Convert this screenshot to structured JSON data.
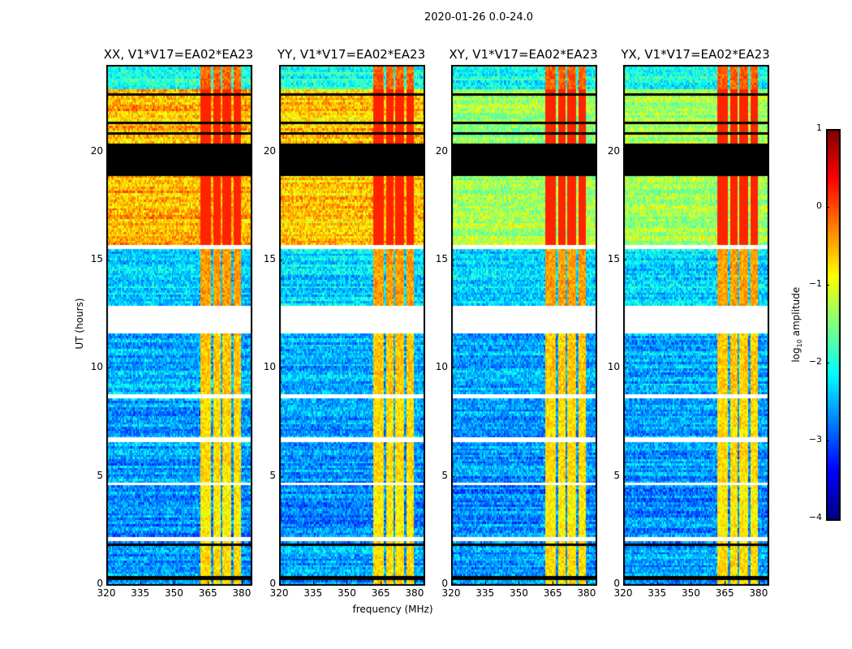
{
  "chart_data": {
    "type": "heatmap",
    "title": "2020-01-26 0.0-24.0",
    "xlabel": "frequency (MHz)",
    "ylabel": "UT (hours)",
    "xlim": [
      320,
      384
    ],
    "ylim": [
      0,
      24
    ],
    "xticks": [
      320,
      335,
      350,
      365,
      380
    ],
    "yticks": [
      0,
      5,
      10,
      15,
      20
    ],
    "colorbar": {
      "label_main": "log",
      "label_sub": "10",
      "label_rest": " amplitude",
      "colormap": "jet",
      "range": [
        -4,
        1
      ],
      "ticks": [
        1,
        0,
        -1,
        -2,
        -3,
        -4
      ]
    },
    "panels": [
      {
        "title": "XX, V1*V17=EA02*EA23",
        "high_level": -0.5
      },
      {
        "title": "YY, V1*V17=EA02*EA23",
        "high_level": -0.6
      },
      {
        "title": "XY, V1*V17=EA02*EA23",
        "high_level": -1.3
      },
      {
        "title": "YX, V1*V17=EA02*EA23",
        "high_level": -1.3
      }
    ],
    "time_segments": [
      {
        "ut": [
          0,
          2.0
        ],
        "level": -2.6
      },
      {
        "ut": [
          2.0,
          2.2
        ],
        "level": "flagged"
      },
      {
        "ut": [
          2.2,
          4.6
        ],
        "level": -2.7
      },
      {
        "ut": [
          4.6,
          4.75
        ],
        "level": "flagged"
      },
      {
        "ut": [
          4.75,
          6.6
        ],
        "level": -2.6
      },
      {
        "ut": [
          6.6,
          6.8
        ],
        "level": "flagged"
      },
      {
        "ut": [
          6.8,
          8.6
        ],
        "level": -2.6
      },
      {
        "ut": [
          8.6,
          8.8
        ],
        "level": "flagged"
      },
      {
        "ut": [
          8.8,
          11.65
        ],
        "level": -2.5
      },
      {
        "ut": [
          11.65,
          12.9
        ],
        "level": "flagged"
      },
      {
        "ut": [
          12.9,
          15.5
        ],
        "level": -2.3
      },
      {
        "ut": [
          15.5,
          15.75
        ],
        "level": "flagged"
      },
      {
        "ut": [
          15.75,
          18.9
        ],
        "level": "high"
      },
      {
        "ut": [
          18.9,
          20.45
        ],
        "level": "zero"
      },
      {
        "ut": [
          20.45,
          22.9
        ],
        "level": "high"
      },
      {
        "ut": [
          22.9,
          24
        ],
        "level": -2.0
      }
    ],
    "zero_lines_ut": [
      0.3,
      0.6,
      1.5,
      1.85,
      20.9,
      21.3,
      22.1,
      22.6
    ],
    "rfi_bands_mhz": [
      [
        361,
        366
      ],
      [
        367,
        370
      ],
      [
        371,
        375
      ],
      [
        376,
        379
      ]
    ],
    "rfi_boost": 1.9
  }
}
